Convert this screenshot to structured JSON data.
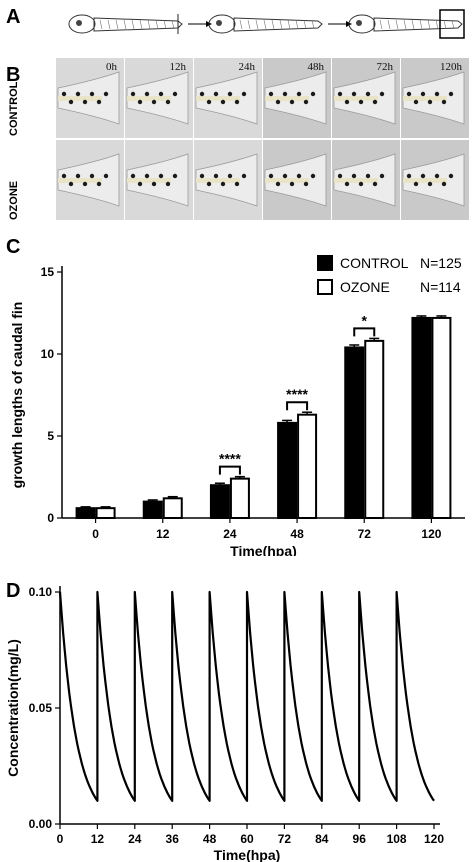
{
  "panels": {
    "a": "A",
    "b": "B",
    "c": "C",
    "d": "D"
  },
  "panel_b": {
    "time_labels": [
      "0h",
      "12h",
      "24h",
      "48h",
      "72h",
      "120h"
    ],
    "row_labels": [
      "CONTROL",
      "OZONE"
    ]
  },
  "chart_data": [
    {
      "type": "bar",
      "xlabel": "Time(hpa)",
      "ylabel": "growth lengths of caudal fin",
      "categories": [
        "0",
        "12",
        "24",
        "48",
        "72",
        "120"
      ],
      "ylim": [
        0,
        15
      ],
      "yticks": [
        "0",
        "5",
        "10",
        "15"
      ],
      "series": [
        {
          "name": "CONTROL",
          "n_label": "N=125",
          "fill": "#000000",
          "values": [
            0.6,
            1.0,
            2.0,
            5.8,
            10.4,
            12.2
          ],
          "errors": [
            0.08,
            0.1,
            0.12,
            0.15,
            0.15,
            0.12
          ]
        },
        {
          "name": "OZONE",
          "n_label": "N=114",
          "fill": "#ffffff",
          "values": [
            0.6,
            1.2,
            2.4,
            6.3,
            10.8,
            12.2
          ],
          "errors": [
            0.08,
            0.1,
            0.12,
            0.15,
            0.15,
            0.12
          ]
        }
      ],
      "significance": [
        {
          "category": "24",
          "label": "****"
        },
        {
          "category": "48",
          "label": "****"
        },
        {
          "category": "72",
          "label": "*"
        }
      ]
    },
    {
      "type": "line",
      "xlabel": "Time(hpa)",
      "ylabel": "Concentration(mg/L)",
      "xlim": [
        0,
        120
      ],
      "ylim": [
        0,
        0.1
      ],
      "xticks": [
        "0",
        "12",
        "24",
        "36",
        "48",
        "60",
        "72",
        "84",
        "96",
        "108",
        "120"
      ],
      "yticks": [
        "0.00",
        "0.05",
        "0.10"
      ],
      "cycle_period": 12,
      "peak": 0.1,
      "trough": 0.01
    }
  ]
}
